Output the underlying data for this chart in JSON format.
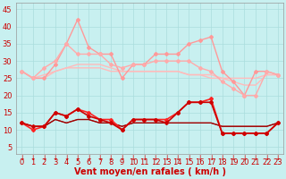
{
  "background_color": "#c8f0f0",
  "grid_color": "#aadddd",
  "xlabel": "Vent moyen/en rafales ( km/h )",
  "xlabel_color": "#cc0000",
  "xlabel_fontsize": 7,
  "tick_color": "#cc0000",
  "tick_fontsize": 6,
  "hours": [
    0,
    1,
    2,
    3,
    4,
    5,
    6,
    7,
    8,
    9,
    10,
    11,
    12,
    13,
    14,
    15,
    16,
    17,
    18,
    19,
    20,
    21,
    22,
    23
  ],
  "ylim": [
    3,
    47
  ],
  "yticks": [
    5,
    10,
    15,
    20,
    25,
    30,
    35,
    40,
    45
  ],
  "series": [
    {
      "values": [
        27,
        25,
        25,
        29,
        35,
        42,
        34,
        32,
        32,
        25,
        29,
        29,
        32,
        32,
        32,
        35,
        36,
        37,
        27,
        24,
        20,
        27,
        27,
        26
      ],
      "color": "#ff9999",
      "linewidth": 1.0,
      "marker": "D",
      "markersize": 2.0,
      "zorder": 2
    },
    {
      "values": [
        27,
        25,
        28,
        30,
        35,
        32,
        32,
        32,
        29,
        28,
        29,
        29,
        30,
        30,
        30,
        30,
        28,
        27,
        24,
        22,
        20,
        20,
        27,
        26
      ],
      "color": "#ffaaaa",
      "linewidth": 1.0,
      "marker": "D",
      "markersize": 2.0,
      "zorder": 2
    },
    {
      "values": [
        27,
        25,
        26,
        27,
        28,
        29,
        29,
        29,
        28,
        27,
        27,
        27,
        27,
        27,
        27,
        26,
        26,
        26,
        25,
        25,
        25,
        25,
        26,
        26
      ],
      "color": "#ffbbbb",
      "linewidth": 1.0,
      "marker": null,
      "markersize": 0,
      "zorder": 1
    },
    {
      "values": [
        27,
        25,
        25,
        27,
        28,
        28,
        28,
        28,
        27,
        27,
        27,
        27,
        27,
        27,
        27,
        26,
        26,
        25,
        25,
        24,
        23,
        23,
        26,
        26
      ],
      "color": "#ffbbbb",
      "linewidth": 1.0,
      "marker": null,
      "markersize": 0,
      "zorder": 1
    },
    {
      "values": [
        12,
        10,
        11,
        15,
        14,
        16,
        15,
        13,
        13,
        10,
        13,
        13,
        13,
        13,
        15,
        18,
        18,
        19,
        9,
        9,
        9,
        9,
        9,
        12
      ],
      "color": "#ff2222",
      "linewidth": 1.2,
      "marker": "D",
      "markersize": 2.0,
      "zorder": 3
    },
    {
      "values": [
        12,
        11,
        11,
        15,
        14,
        16,
        14,
        13,
        12,
        10,
        13,
        13,
        13,
        12,
        15,
        18,
        18,
        18,
        9,
        9,
        9,
        9,
        9,
        12
      ],
      "color": "#cc0000",
      "linewidth": 1.2,
      "marker": "D",
      "markersize": 2.0,
      "zorder": 3
    },
    {
      "values": [
        12,
        11,
        11,
        13,
        12,
        13,
        13,
        12,
        12,
        11,
        12,
        12,
        12,
        12,
        12,
        12,
        12,
        12,
        11,
        11,
        11,
        11,
        11,
        12
      ],
      "color": "#cc3333",
      "linewidth": 0.9,
      "marker": null,
      "markersize": 0,
      "zorder": 1
    },
    {
      "values": [
        12,
        11,
        11,
        13,
        12,
        13,
        13,
        12,
        12,
        11,
        12,
        12,
        12,
        12,
        12,
        12,
        12,
        12,
        11,
        11,
        11,
        11,
        11,
        12
      ],
      "color": "#990000",
      "linewidth": 0.9,
      "marker": null,
      "markersize": 0,
      "zorder": 1
    }
  ],
  "arrow_color": "#cc0000"
}
